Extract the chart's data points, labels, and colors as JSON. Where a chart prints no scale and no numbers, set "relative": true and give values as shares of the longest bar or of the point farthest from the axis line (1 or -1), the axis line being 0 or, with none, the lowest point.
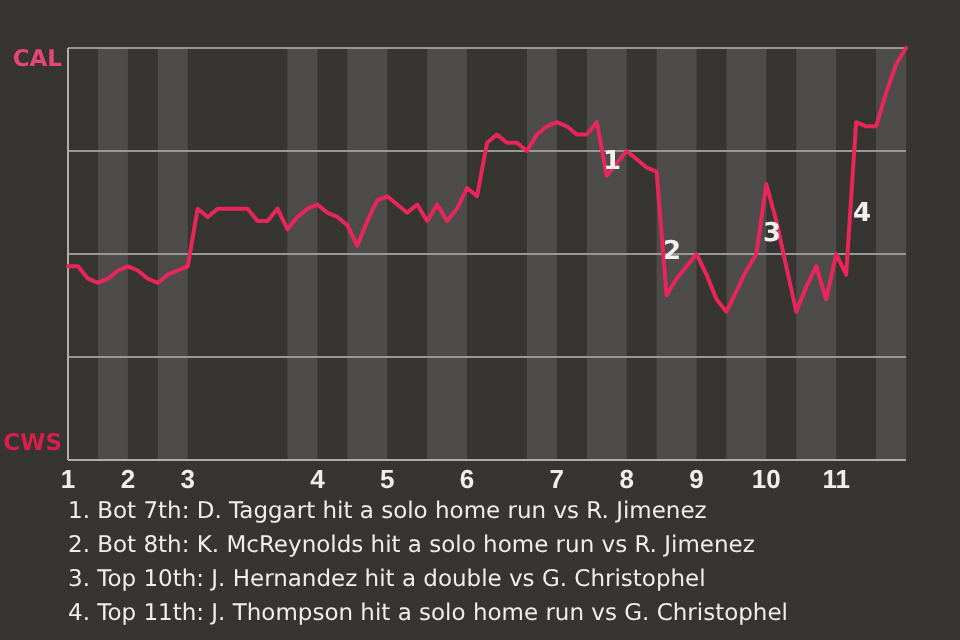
{
  "chart_data": {
    "type": "line",
    "relative": true,
    "grid": "y",
    "categories": [
      "1",
      null,
      null,
      null,
      null,
      null,
      "2",
      null,
      null,
      null,
      null,
      null,
      "3",
      null,
      null,
      null,
      null,
      null,
      null,
      null,
      null,
      null,
      null,
      null,
      null,
      "4",
      null,
      null,
      null,
      null,
      null,
      null,
      "5",
      null,
      null,
      null,
      null,
      null,
      null,
      null,
      "6",
      null,
      null,
      null,
      null,
      null,
      null,
      null,
      null,
      "7",
      null,
      null,
      null,
      null,
      null,
      null,
      "8",
      null,
      null,
      null,
      null,
      null,
      null,
      "9",
      null,
      null,
      null,
      null,
      null,
      null,
      "10",
      null,
      null,
      null,
      null,
      null,
      null,
      "11",
      null,
      null,
      null,
      null,
      null,
      null,
      null
    ],
    "series": [
      {
        "color": "#e8265a",
        "values": [
          0.47,
          0.47,
          0.44,
          0.43,
          0.44,
          0.46,
          0.47,
          0.46,
          0.44,
          0.43,
          0.45,
          0.46,
          0.47,
          0.61,
          0.59,
          0.61,
          0.61,
          0.61,
          0.61,
          0.58,
          0.58,
          0.61,
          0.56,
          0.59,
          0.61,
          0.62,
          0.6,
          0.59,
          0.57,
          0.52,
          0.58,
          0.63,
          0.64,
          0.62,
          0.6,
          0.62,
          0.58,
          0.62,
          0.58,
          0.61,
          0.66,
          0.64,
          0.77,
          0.79,
          0.77,
          0.77,
          0.75,
          0.79,
          0.81,
          0.82,
          0.81,
          0.79,
          0.79,
          0.82,
          0.69,
          0.72,
          0.75,
          0.73,
          0.71,
          0.7,
          0.4,
          0.44,
          0.47,
          0.5,
          0.45,
          0.39,
          0.36,
          0.41,
          0.46,
          0.5,
          0.67,
          0.58,
          0.47,
          0.36,
          0.42,
          0.47,
          0.39,
          0.5,
          0.45,
          0.82,
          0.81,
          0.81,
          0.89,
          0.96,
          1.0
        ]
      }
    ],
    "annotations": [
      "CAL",
      "CWS",
      "1",
      "2",
      "3",
      "4",
      "1. Bot 7th: D. Taggart hit a solo home run vs R. Jimenez",
      "2. Bot 8th: K. McReynolds hit a solo home run vs R. Jimenez",
      "3. Top 10th: J. Hernandez hit a double vs G. Christophel",
      "4. Top 11th: J. Thompson hit a solo home run vs G. Christophel"
    ]
  }
}
